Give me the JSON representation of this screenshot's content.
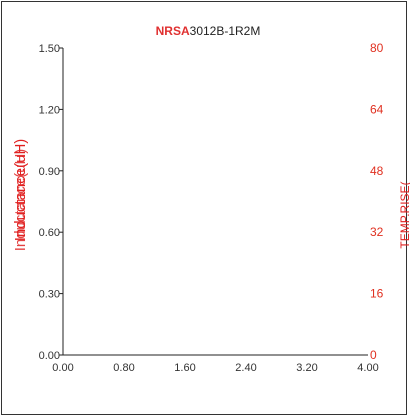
{
  "chart_data": {
    "type": "line",
    "title": {
      "prefix": "NRSA",
      "rest": "3012B-1R2M",
      "prefix_color": "#e03030",
      "rest_color": "#222222"
    },
    "xlabel": "",
    "ylabel_left": {
      "text": "Inductance(uH)",
      "overlay_text": "Inductance(uH)",
      "color": "#e02020"
    },
    "ylabel_right": {
      "text": "TEMP.RISE(",
      "color": "#e02020"
    },
    "x_ticks": [
      "0.00",
      "0.80",
      "1.60",
      "2.40",
      "3.20",
      "4.00"
    ],
    "xlim": [
      0,
      4.0
    ],
    "y_left_ticks": [
      "0.00",
      "0.30",
      "0.60",
      "0.90",
      "1.20",
      "1.50"
    ],
    "ylim_left": [
      0,
      1.5
    ],
    "y_right_ticks": [
      "0",
      "16",
      "32",
      "48",
      "64",
      "80"
    ],
    "ylim_right": [
      0,
      80
    ],
    "right_tick_color": "#e03020",
    "axis_color": "#222222",
    "grid": false,
    "series": []
  }
}
